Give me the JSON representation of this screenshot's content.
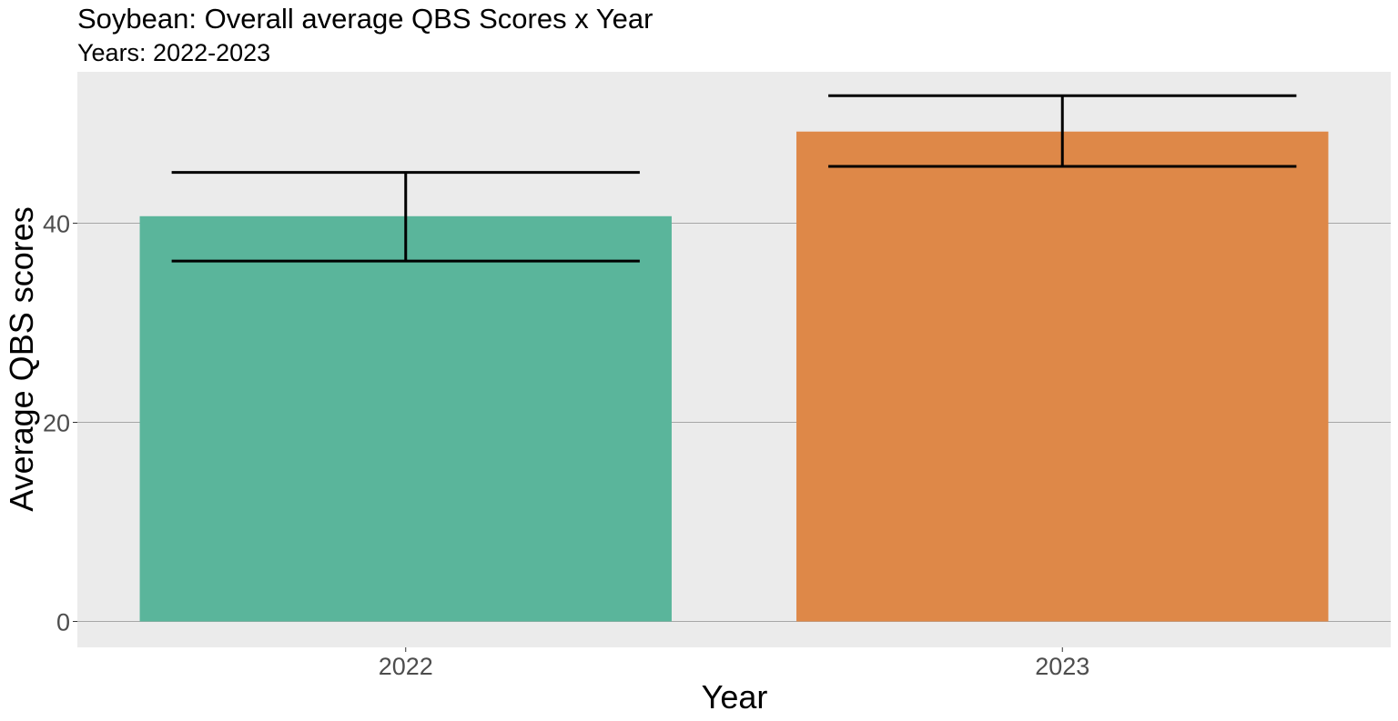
{
  "chart_data": {
    "type": "bar",
    "title": "Soybean: Overall average QBS Scores x Year",
    "subtitle": "Years: 2022-2023",
    "xlabel": "Year",
    "ylabel": "Average QBS scores",
    "categories": [
      "2022",
      "2023"
    ],
    "values": [
      40.7,
      49.2
    ],
    "error_low": [
      36.2,
      45.7
    ],
    "error_high": [
      45.1,
      52.8
    ],
    "ylim": [
      -2.6,
      55.2
    ],
    "yticks": [
      0,
      20,
      40
    ],
    "ytick_labels": [
      "0",
      "20",
      "40"
    ],
    "grid": true,
    "legend": "none",
    "colors": [
      "#5ab59b",
      "#de8848"
    ],
    "panel_background": "#ebebeb",
    "gridline_color": "#a6a6a6",
    "errorbar_color": "#000000"
  }
}
